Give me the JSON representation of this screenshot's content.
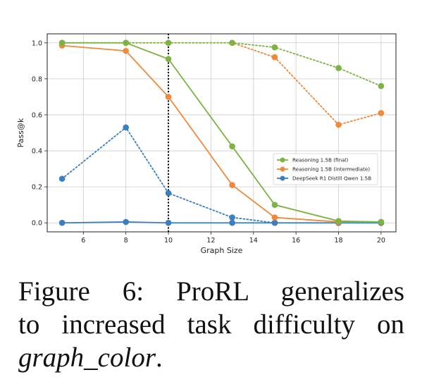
{
  "chart_data": {
    "type": "line",
    "xlabel": "Graph Size",
    "ylabel": "Pass@k",
    "xlim": [
      4.3,
      20.7
    ],
    "ylim": [
      -0.05,
      1.05
    ],
    "xticks": [
      6,
      8,
      10,
      12,
      14,
      16,
      18,
      20
    ],
    "yticks": [
      0.0,
      0.2,
      0.4,
      0.6,
      0.8,
      1.0
    ],
    "xtick_labels": [
      "6",
      "8",
      "10",
      "12",
      "14",
      "16",
      "18",
      "20"
    ],
    "ytick_labels": [
      "0.0",
      "0.2",
      "0.4",
      "0.6",
      "0.8",
      "1.0"
    ],
    "grid": true,
    "legend_position": "center-right",
    "vline_x": 10,
    "x": [
      5,
      8,
      10,
      13,
      15,
      18,
      20
    ],
    "series": [
      {
        "name": "Reasoning 1.5B (final)",
        "color": "#7cb342",
        "pass_1": [
          1.0,
          1.0,
          0.91,
          0.425,
          0.1,
          0.01,
          0.005
        ],
        "pass_k": [
          1.0,
          1.0,
          1.0,
          1.0,
          0.975,
          0.86,
          0.76
        ]
      },
      {
        "name": "Reasoning 1.5B (intermediate)",
        "color": "#ef8a3c",
        "pass_1": [
          0.985,
          0.955,
          0.7,
          0.21,
          0.03,
          0.005,
          0.005
        ],
        "pass_k": [
          1.0,
          1.0,
          1.0,
          1.0,
          0.92,
          0.545,
          0.61
        ]
      },
      {
        "name": "DeepSeek-R1-Distill-Qwen-1.5B",
        "color": "#3a7fc1",
        "pass_1": [
          0.0,
          0.005,
          0.0,
          0.0,
          0.0,
          0.0,
          0.0
        ],
        "pass_k": [
          0.245,
          0.53,
          0.165,
          0.03,
          0.0,
          0.0,
          0.0
        ]
      }
    ]
  },
  "legend_labels": [
    "Reasoning 1.5B (final)",
    "Reasoning 1.5B (intermediate)",
    "DeepSeek R1 Distill Qwen 1.5B"
  ],
  "caption": {
    "line1": "Figure 6:  ProRL generalizes",
    "line2": "to increased task difficulty on",
    "line3_emph": "graph_color",
    "line3_tail": "."
  }
}
